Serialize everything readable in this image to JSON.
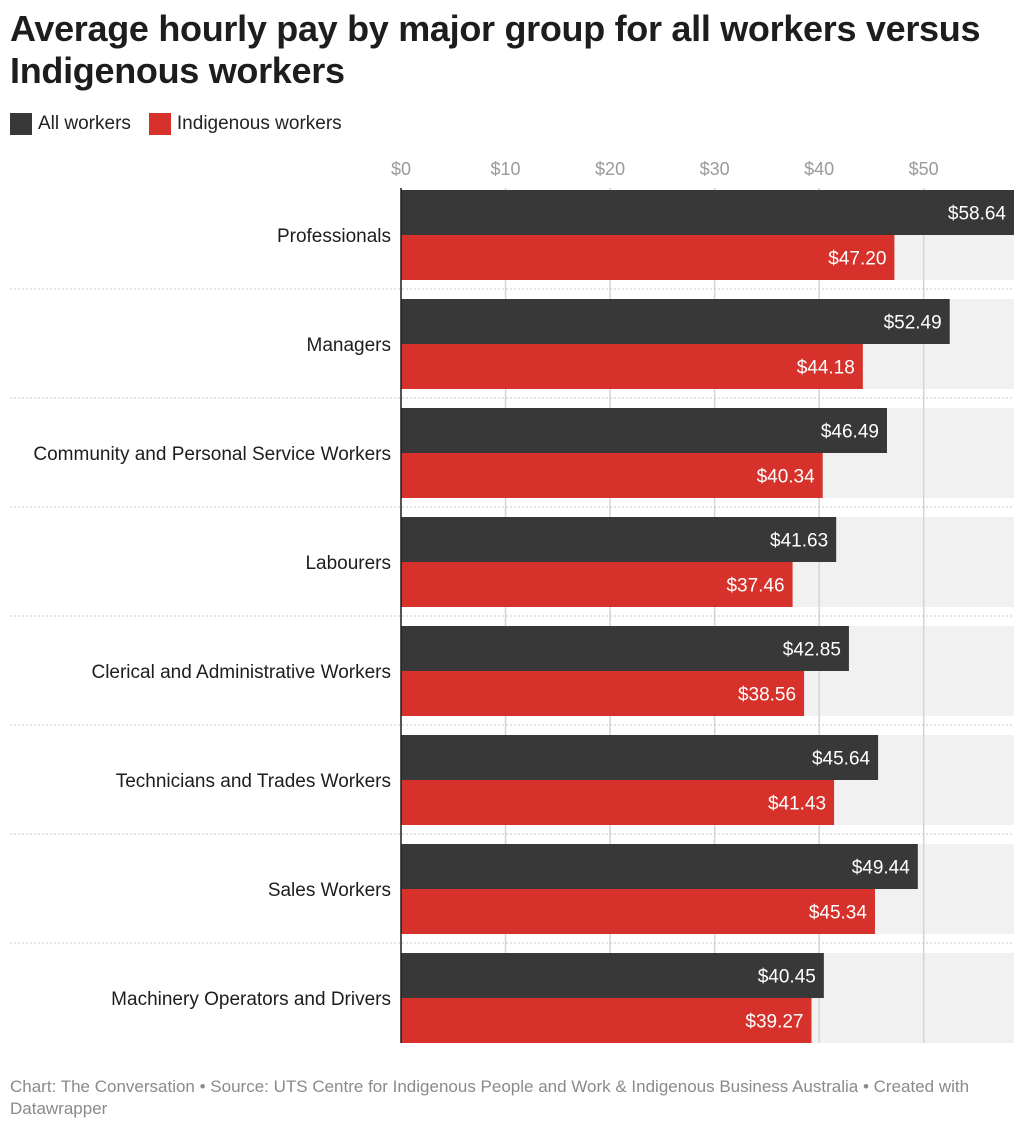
{
  "title": "Average hourly pay by major group for all workers versus Indigenous workers",
  "footer": "Chart: The Conversation • Source: UTS Centre for Indigenous People and Work & Indigenous Business Australia • Created with Datawrapper",
  "colors": {
    "all_workers": "#383838",
    "indigenous_workers": "#d6312a",
    "track": "#f1f1f1",
    "grid": "#d4d4d4"
  },
  "chart_data": {
    "type": "bar",
    "orientation": "horizontal",
    "title": "Average hourly pay by major group for all workers versus Indigenous workers",
    "xlabel": "",
    "ylabel": "",
    "xlim": [
      0,
      58.64
    ],
    "x_ticks": [
      "$0",
      "$10",
      "$20",
      "$30",
      "$40",
      "$50"
    ],
    "x_tick_values": [
      0,
      10,
      20,
      30,
      40,
      50
    ],
    "grid": true,
    "legend_position": "top-left",
    "categories": [
      "Professionals",
      "Managers",
      "Community and Personal Service Workers",
      "Labourers",
      "Clerical and Administrative Workers",
      "Technicians and Trades Workers",
      "Sales Workers",
      "Machinery Operators and Drivers"
    ],
    "series": [
      {
        "name": "All workers",
        "values": [
          58.64,
          52.49,
          46.49,
          41.63,
          42.85,
          45.64,
          49.44,
          40.45
        ],
        "labels": [
          "$58.64",
          "$52.49",
          "$46.49",
          "$41.63",
          "$42.85",
          "$45.64",
          "$49.44",
          "$40.45"
        ]
      },
      {
        "name": "Indigenous workers",
        "values": [
          47.2,
          44.18,
          40.34,
          37.46,
          38.56,
          41.43,
          45.34,
          39.27
        ],
        "labels": [
          "$47.20",
          "$44.18",
          "$40.34",
          "$37.46",
          "$38.56",
          "$41.43",
          "$45.34",
          "$39.27"
        ]
      }
    ]
  }
}
